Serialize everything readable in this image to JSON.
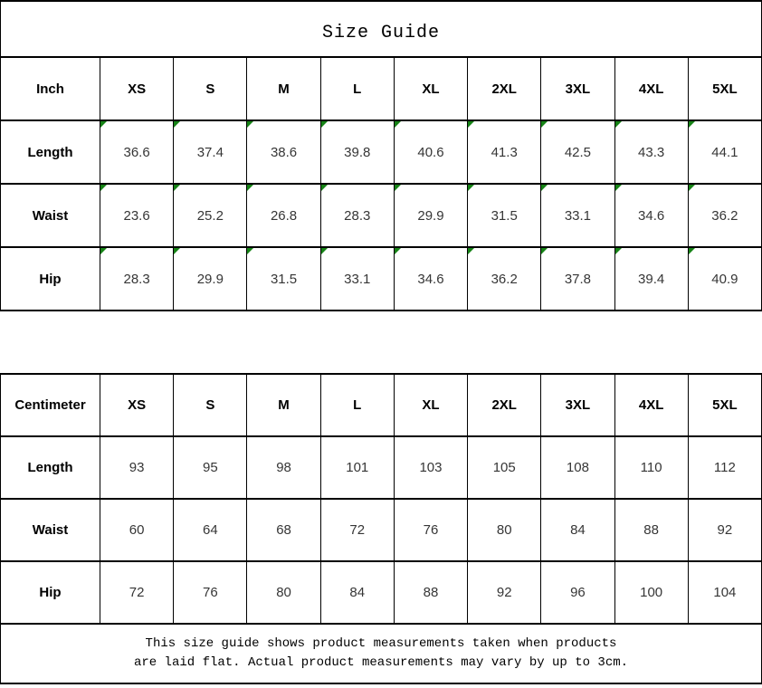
{
  "title": "Size Guide",
  "colors": {
    "marker_green": "#168316",
    "border_black": "#000000"
  },
  "icons": {
    "cell_corner_marker": "green-triangle-top-left"
  },
  "tables": {
    "inch": {
      "unit_label": "Inch",
      "sizes": [
        "XS",
        "S",
        "M",
        "L",
        "XL",
        "2XL",
        "3XL",
        "4XL",
        "5XL"
      ],
      "rows": [
        {
          "label": "Length",
          "values": [
            "36.6",
            "37.4",
            "38.6",
            "39.8",
            "40.6",
            "41.3",
            "42.5",
            "43.3",
            "44.1"
          ]
        },
        {
          "label": "Waist",
          "values": [
            "23.6",
            "25.2",
            "26.8",
            "28.3",
            "29.9",
            "31.5",
            "33.1",
            "34.6",
            "36.2"
          ]
        },
        {
          "label": "Hip",
          "values": [
            "28.3",
            "29.9",
            "31.5",
            "33.1",
            "34.6",
            "36.2",
            "37.8",
            "39.4",
            "40.9"
          ]
        }
      ]
    },
    "centimeter": {
      "unit_label": "Centimeter",
      "sizes": [
        "XS",
        "S",
        "M",
        "L",
        "XL",
        "2XL",
        "3XL",
        "4XL",
        "5XL"
      ],
      "rows": [
        {
          "label": "Length",
          "values": [
            "93",
            "95",
            "98",
            "101",
            "103",
            "105",
            "108",
            "110",
            "112"
          ]
        },
        {
          "label": "Waist",
          "values": [
            "60",
            "64",
            "68",
            "72",
            "76",
            "80",
            "84",
            "88",
            "92"
          ]
        },
        {
          "label": "Hip",
          "values": [
            "72",
            "76",
            "80",
            "84",
            "88",
            "92",
            "96",
            "100",
            "104"
          ]
        }
      ]
    }
  },
  "footer": {
    "line1": "This size guide shows product measurements taken when products",
    "line2": "are laid flat. Actual product measurements may vary by up to 3cm."
  }
}
